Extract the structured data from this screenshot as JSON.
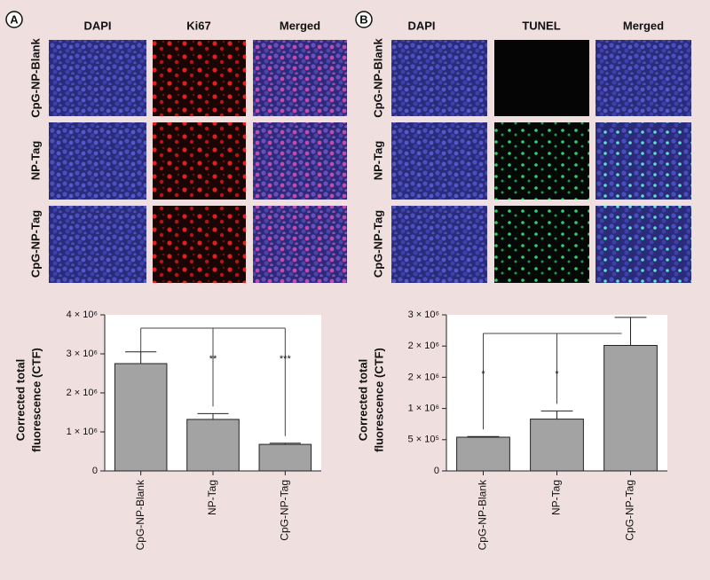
{
  "panel_a": {
    "label": "A",
    "columns": [
      "DAPI",
      "Ki67",
      "Merged"
    ],
    "rows": [
      "CpG-NP-Blank",
      "NP-Tag",
      "CpG-NP-Tag"
    ]
  },
  "panel_b": {
    "label": "B",
    "columns": [
      "DAPI",
      "TUNEL",
      "Merged"
    ],
    "rows": [
      "CpG-NP-Blank",
      "NP-Tag",
      "CpG-NP-Tag"
    ]
  },
  "chart_data": [
    {
      "type": "bar",
      "ylabel": [
        "Corrected total",
        "fluorescence (CTF)"
      ],
      "categories": [
        "CpG-NP-Blank",
        "NP-Tag",
        "CpG-NP-Tag"
      ],
      "values": [
        2750000,
        1320000,
        680000
      ],
      "errors": [
        300000,
        150000,
        30000
      ],
      "annotations": [
        null,
        "**",
        "***"
      ],
      "color": "#a3a3a3",
      "ylim": [
        0,
        4000000
      ],
      "yticks": [
        0,
        {
          "value": 1000000,
          "label": "1 × 10⁶"
        },
        {
          "value": 2000000,
          "label": "2 × 10⁶"
        },
        {
          "value": 3000000,
          "label": "3 × 10⁶"
        },
        {
          "value": 4000000,
          "label": "4 × 10⁶"
        }
      ]
    },
    {
      "type": "bar",
      "ylabel": [
        "Corrected total",
        "fluorescence (CTF)"
      ],
      "categories": [
        "CpG-NP-Blank",
        "NP-Tag",
        "CpG-NP-Tag"
      ],
      "values": [
        540000,
        830000,
        2010000
      ],
      "errors": [
        10000,
        130000,
        450000
      ],
      "annotations": [
        "*",
        "*",
        null
      ],
      "color": "#a3a3a3",
      "ylim": [
        0,
        2500000
      ],
      "yticks": [
        0,
        {
          "value": 500000,
          "label": "5 × 10⁵"
        },
        {
          "value": 1000000,
          "label": "1 × 10⁶"
        },
        {
          "value": 1500000,
          "label": "2 × 10⁶"
        },
        {
          "value": 2000000,
          "label": "2 × 10⁶"
        },
        {
          "value": 2500000,
          "label": "3 × 10⁶"
        }
      ]
    }
  ]
}
